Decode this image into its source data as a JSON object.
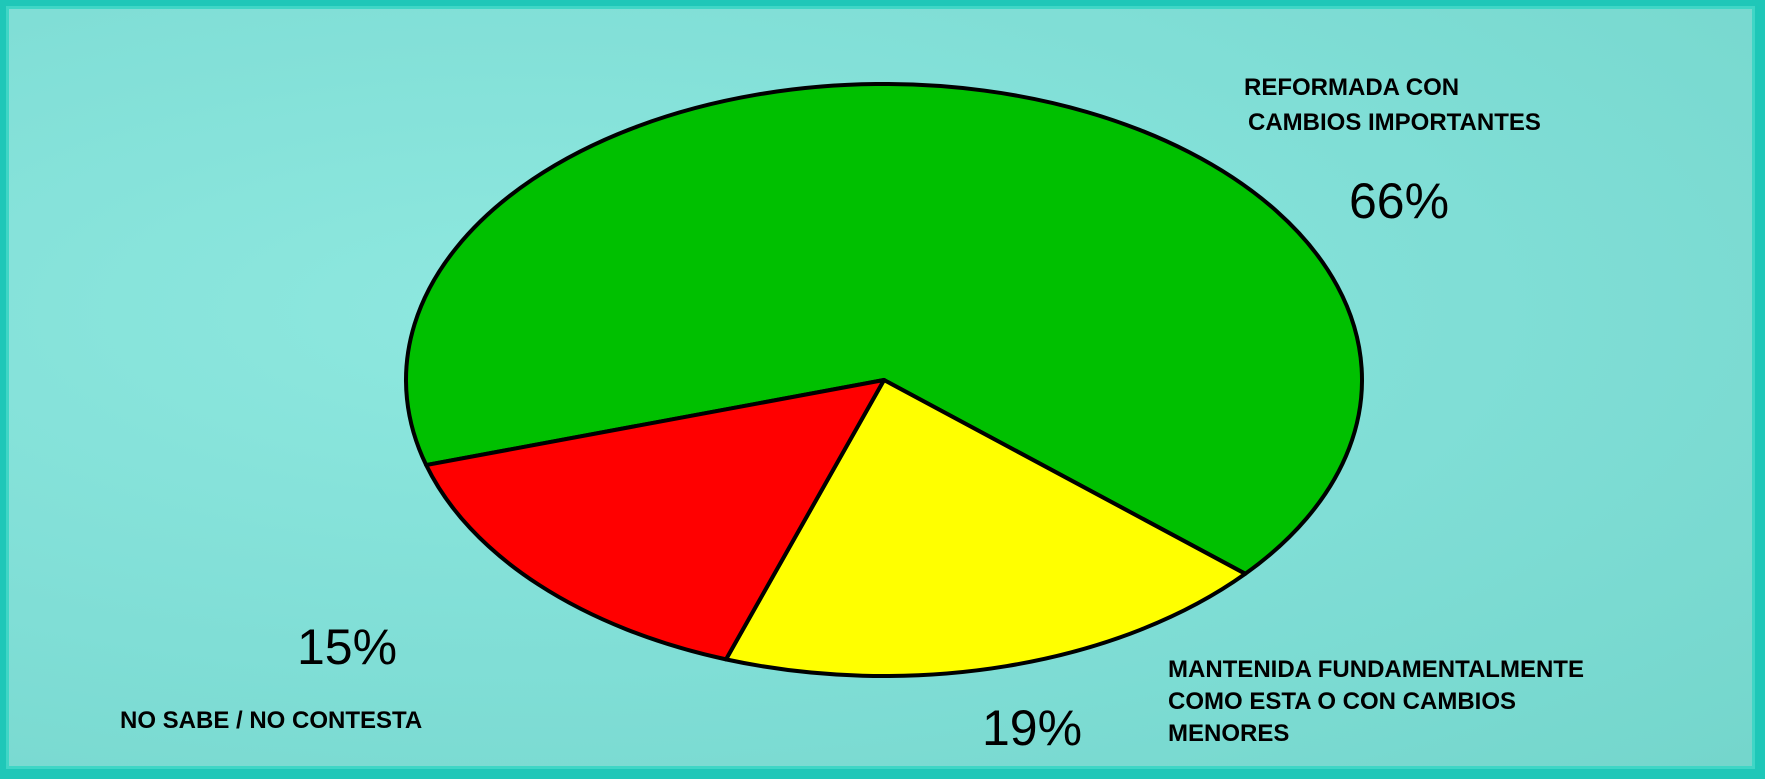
{
  "chart_data": {
    "type": "pie",
    "categories": [
      "REFORMADA CON CAMBIOS IMPORTANTES",
      "MANTENIDA FUNDAMENTALMENTE COMO ESTA O CON CAMBIOS MENORES",
      "NO SABE / NO CONTESTA"
    ],
    "values": [
      66,
      19,
      15
    ],
    "value_labels": [
      "66%",
      "19%",
      "15%"
    ],
    "label_lines": [
      [
        "REFORMADA CON",
        "CAMBIOS IMPORTANTES"
      ],
      [
        "MANTENIDA FUNDAMENTALMENTE",
        "COMO ESTA O CON CAMBIOS",
        "MENORES"
      ],
      [
        "NO SABE / NO CONTESTA"
      ]
    ],
    "colors": [
      "#00c000",
      "#ffff00",
      "#ff0000"
    ],
    "title": "",
    "legend": "none"
  }
}
